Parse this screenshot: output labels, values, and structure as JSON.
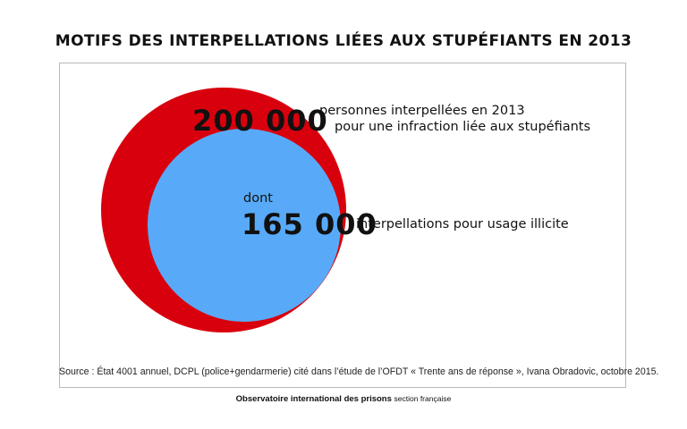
{
  "title": "MOTIFS DES INTERPELLATIONS LIÉES AUX STUPÉFIANTS EN 2013",
  "outer": {
    "value": "200 000",
    "label_line1": "personnes interpellées en 2013",
    "label_line2": "pour une infraction liée aux stupéfiants",
    "color": "#d9000d"
  },
  "inner": {
    "prefix": "dont",
    "value": "165 000",
    "label": "interpellations pour usage illicite",
    "color": "#58aaf8"
  },
  "source": "Source : État 4001 annuel, DCPL (police+gendarmerie) cité dans l’étude de l’OFDT « Trente ans de réponse », Ivana Obradovic, octobre 2015.",
  "footer": {
    "organization": "Observatoire international des prisons",
    "section": "section française"
  }
}
